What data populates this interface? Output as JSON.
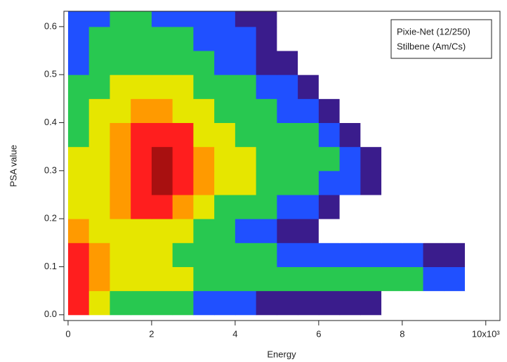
{
  "chart_data": {
    "type": "heatmap",
    "xlabel": "Energy",
    "ylabel": "PSA value",
    "annotation": [
      "Pixie-Net (12/250)",
      "Stilbene (Am/Cs)"
    ],
    "xlim": [
      -0.1,
      10.34
    ],
    "ylim": [
      -0.012,
      0.632
    ],
    "xticks": [
      0,
      2,
      4,
      6,
      8,
      {
        "value": 10,
        "label": "10x10³"
      }
    ],
    "yticks": [
      {
        "value": 0,
        "label": "0.0"
      },
      0.1,
      0.2,
      0.3,
      0.4,
      0.5,
      0.6
    ],
    "colors": [
      "#ffffff",
      "#3a1c8c",
      "#2050ff",
      "#28c850",
      "#e6e600",
      "#ff9a00",
      "#ff1e1e",
      "#a81010"
    ],
    "x_bins": [
      0,
      0.5,
      1,
      1.5,
      2,
      2.5,
      3,
      3.5,
      4,
      4.5,
      5,
      5.5,
      6,
      6.5,
      7,
      7.5,
      8,
      8.5,
      9,
      9.5,
      10
    ],
    "y_bins": [
      0,
      0.05,
      0.1,
      0.15,
      0.2,
      0.25,
      0.3,
      0.35,
      0.4,
      0.45,
      0.5,
      0.55,
      0.6,
      0.65
    ],
    "z": [
      [
        6,
        4,
        3,
        3,
        3,
        3,
        2,
        2,
        2,
        1,
        1,
        1,
        1,
        1,
        1,
        0,
        0,
        0,
        0,
        0
      ],
      [
        6,
        5,
        4,
        4,
        4,
        4,
        3,
        3,
        3,
        3,
        3,
        3,
        3,
        3,
        3,
        3,
        3,
        2,
        2,
        0
      ],
      [
        6,
        5,
        4,
        4,
        4,
        3,
        3,
        3,
        3,
        3,
        2,
        2,
        2,
        2,
        2,
        2,
        2,
        1,
        1,
        0
      ],
      [
        5,
        4,
        4,
        4,
        4,
        4,
        3,
        3,
        2,
        2,
        1,
        1,
        0,
        0,
        0,
        0,
        0,
        0,
        0,
        0
      ],
      [
        4,
        4,
        5,
        6,
        6,
        5,
        4,
        3,
        3,
        3,
        2,
        2,
        1,
        0,
        0,
        0,
        0,
        0,
        0,
        0
      ],
      [
        4,
        4,
        5,
        6,
        7,
        6,
        5,
        4,
        4,
        3,
        3,
        3,
        2,
        2,
        1,
        0,
        0,
        0,
        0,
        0
      ],
      [
        4,
        4,
        5,
        6,
        7,
        6,
        5,
        4,
        4,
        3,
        3,
        3,
        3,
        2,
        1,
        0,
        0,
        0,
        0,
        0
      ],
      [
        3,
        4,
        5,
        6,
        6,
        6,
        4,
        4,
        3,
        3,
        3,
        3,
        2,
        1,
        0,
        0,
        0,
        0,
        0,
        0
      ],
      [
        3,
        4,
        4,
        5,
        5,
        4,
        4,
        3,
        3,
        3,
        2,
        2,
        1,
        0,
        0,
        0,
        0,
        0,
        0,
        0
      ],
      [
        3,
        3,
        4,
        4,
        4,
        4,
        3,
        3,
        3,
        2,
        2,
        1,
        0,
        0,
        0,
        0,
        0,
        0,
        0,
        0
      ],
      [
        2,
        3,
        3,
        3,
        3,
        3,
        3,
        2,
        2,
        1,
        1,
        0,
        0,
        0,
        0,
        0,
        0,
        0,
        0,
        0
      ],
      [
        2,
        3,
        3,
        3,
        3,
        3,
        2,
        2,
        2,
        1,
        0,
        0,
        0,
        0,
        0,
        0,
        0,
        0,
        0,
        0
      ],
      [
        2,
        2,
        3,
        3,
        2,
        2,
        2,
        2,
        1,
        1,
        0,
        0,
        0,
        0,
        0,
        0,
        0,
        0,
        0,
        0
      ]
    ]
  }
}
